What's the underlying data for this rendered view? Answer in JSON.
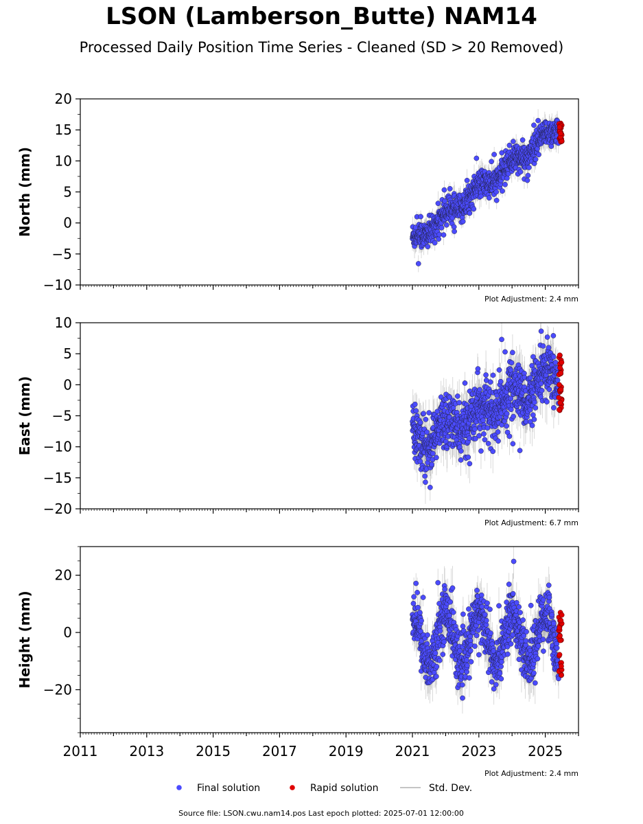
{
  "title": "LSON (Lamberson_Butte) NAM14",
  "subtitle": "Processed Daily Position Time Series - Cleaned (SD > 20 Removed)",
  "source_text": "Source file: LSON.cwu.nam14.pos  Last epoch plotted: 2025-07-01 12:00:00",
  "colors": {
    "final": "#4b4bff",
    "rapid": "#e00000",
    "stddev": "#b0b0b0",
    "edge": "#222244"
  },
  "legend": [
    {
      "key": "final",
      "label": "Final solution"
    },
    {
      "key": "rapid",
      "label": "Rapid solution"
    },
    {
      "key": "stddev",
      "label": "Std. Dev."
    }
  ],
  "chart_data": [
    {
      "type": "scatter",
      "ylabel": "North (mm)",
      "xlim": [
        2011,
        2026
      ],
      "ylim": [
        -10,
        20
      ],
      "yticks": [
        -10,
        -5,
        0,
        5,
        10,
        15,
        20
      ],
      "adjustment_label": "Plot Adjustment: 2.4 mm",
      "final_trend": {
        "x": [
          2021.0,
          2025.45
        ],
        "y": [
          -3.0,
          15.5
        ]
      },
      "final_seasonal_amp": 0.8,
      "final_noise": 1.1,
      "rapid": {
        "x_range": [
          2025.4,
          2025.5
        ],
        "y_range": [
          13.0,
          16.3
        ]
      },
      "series": [
        {
          "name": "Final solution",
          "x_range": [
            2021.0,
            2025.4
          ]
        },
        {
          "name": "Rapid solution",
          "x_range": [
            2025.4,
            2025.5
          ]
        }
      ]
    },
    {
      "type": "scatter",
      "ylabel": "East (mm)",
      "xlim": [
        2011,
        2026
      ],
      "ylim": [
        -20,
        10
      ],
      "yticks": [
        -20,
        -15,
        -10,
        -5,
        0,
        5,
        10
      ],
      "adjustment_label": "Plot Adjustment: 6.7 mm",
      "final_trend": {
        "x": [
          2021.0,
          2025.45
        ],
        "y": [
          -9.5,
          1.5
        ]
      },
      "final_seasonal_amp": 1.5,
      "final_noise": 2.2,
      "rapid": {
        "x_range": [
          2025.4,
          2025.5
        ],
        "y_range": [
          -4.3,
          5.3
        ]
      },
      "series": [
        {
          "name": "Final solution",
          "x_range": [
            2021.0,
            2025.4
          ]
        },
        {
          "name": "Rapid solution",
          "x_range": [
            2025.4,
            2025.5
          ]
        }
      ]
    },
    {
      "type": "scatter",
      "ylabel": "Height (mm)",
      "xlim": [
        2011,
        2026
      ],
      "ylim": [
        -35,
        30
      ],
      "yticks": [
        -20,
        0,
        20
      ],
      "xticks": [
        2011,
        2013,
        2015,
        2017,
        2019,
        2021,
        2023,
        2025
      ],
      "adjustment_label": "Plot Adjustment: 2.4 mm",
      "final_trend": {
        "x": [
          2021.0,
          2025.45
        ],
        "y": [
          -2.0,
          -2.0
        ]
      },
      "final_seasonal_amp": 9.0,
      "final_noise": 4.5,
      "rapid": {
        "x_range": [
          2025.4,
          2025.5
        ],
        "y_range": [
          -15.0,
          7.6
        ]
      },
      "series": [
        {
          "name": "Final solution",
          "x_range": [
            2021.0,
            2025.4
          ]
        },
        {
          "name": "Rapid solution",
          "x_range": [
            2025.4,
            2025.5
          ]
        }
      ]
    }
  ]
}
